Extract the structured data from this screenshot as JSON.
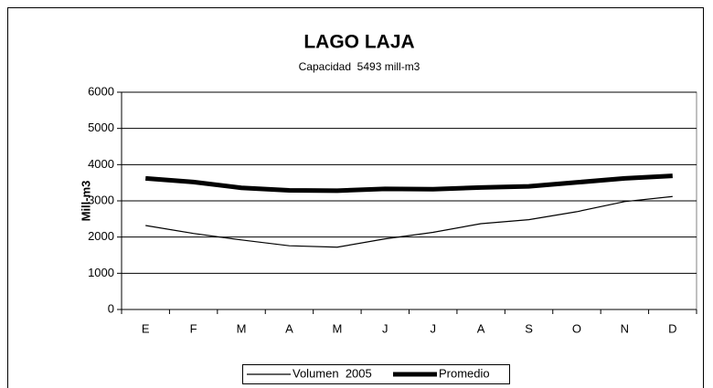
{
  "chart_data": {
    "type": "line",
    "title": "LAGO LAJA",
    "subtitle": "Capacidad  5493 mill-m3",
    "y_label": "Mill-m3",
    "categories": [
      "E",
      "F",
      "M",
      "A",
      "M",
      "J",
      "J",
      "A",
      "S",
      "O",
      "N",
      "D"
    ],
    "series": [
      {
        "name": "Volumen  2005",
        "color": "#000000",
        "values": [
          2320,
          2100,
          1920,
          1760,
          1720,
          1950,
          2130,
          2370,
          2480,
          2700,
          2980,
          3120
        ]
      },
      {
        "name": "Promedio",
        "color": "#000000",
        "values": [
          3620,
          3520,
          3360,
          3290,
          3280,
          3330,
          3320,
          3370,
          3400,
          3510,
          3620,
          3690
        ]
      }
    ],
    "ylim": [
      0,
      6000
    ],
    "yticks": [
      0,
      1000,
      2000,
      3000,
      4000,
      5000,
      6000
    ],
    "grid": true,
    "legend": "bottom"
  }
}
